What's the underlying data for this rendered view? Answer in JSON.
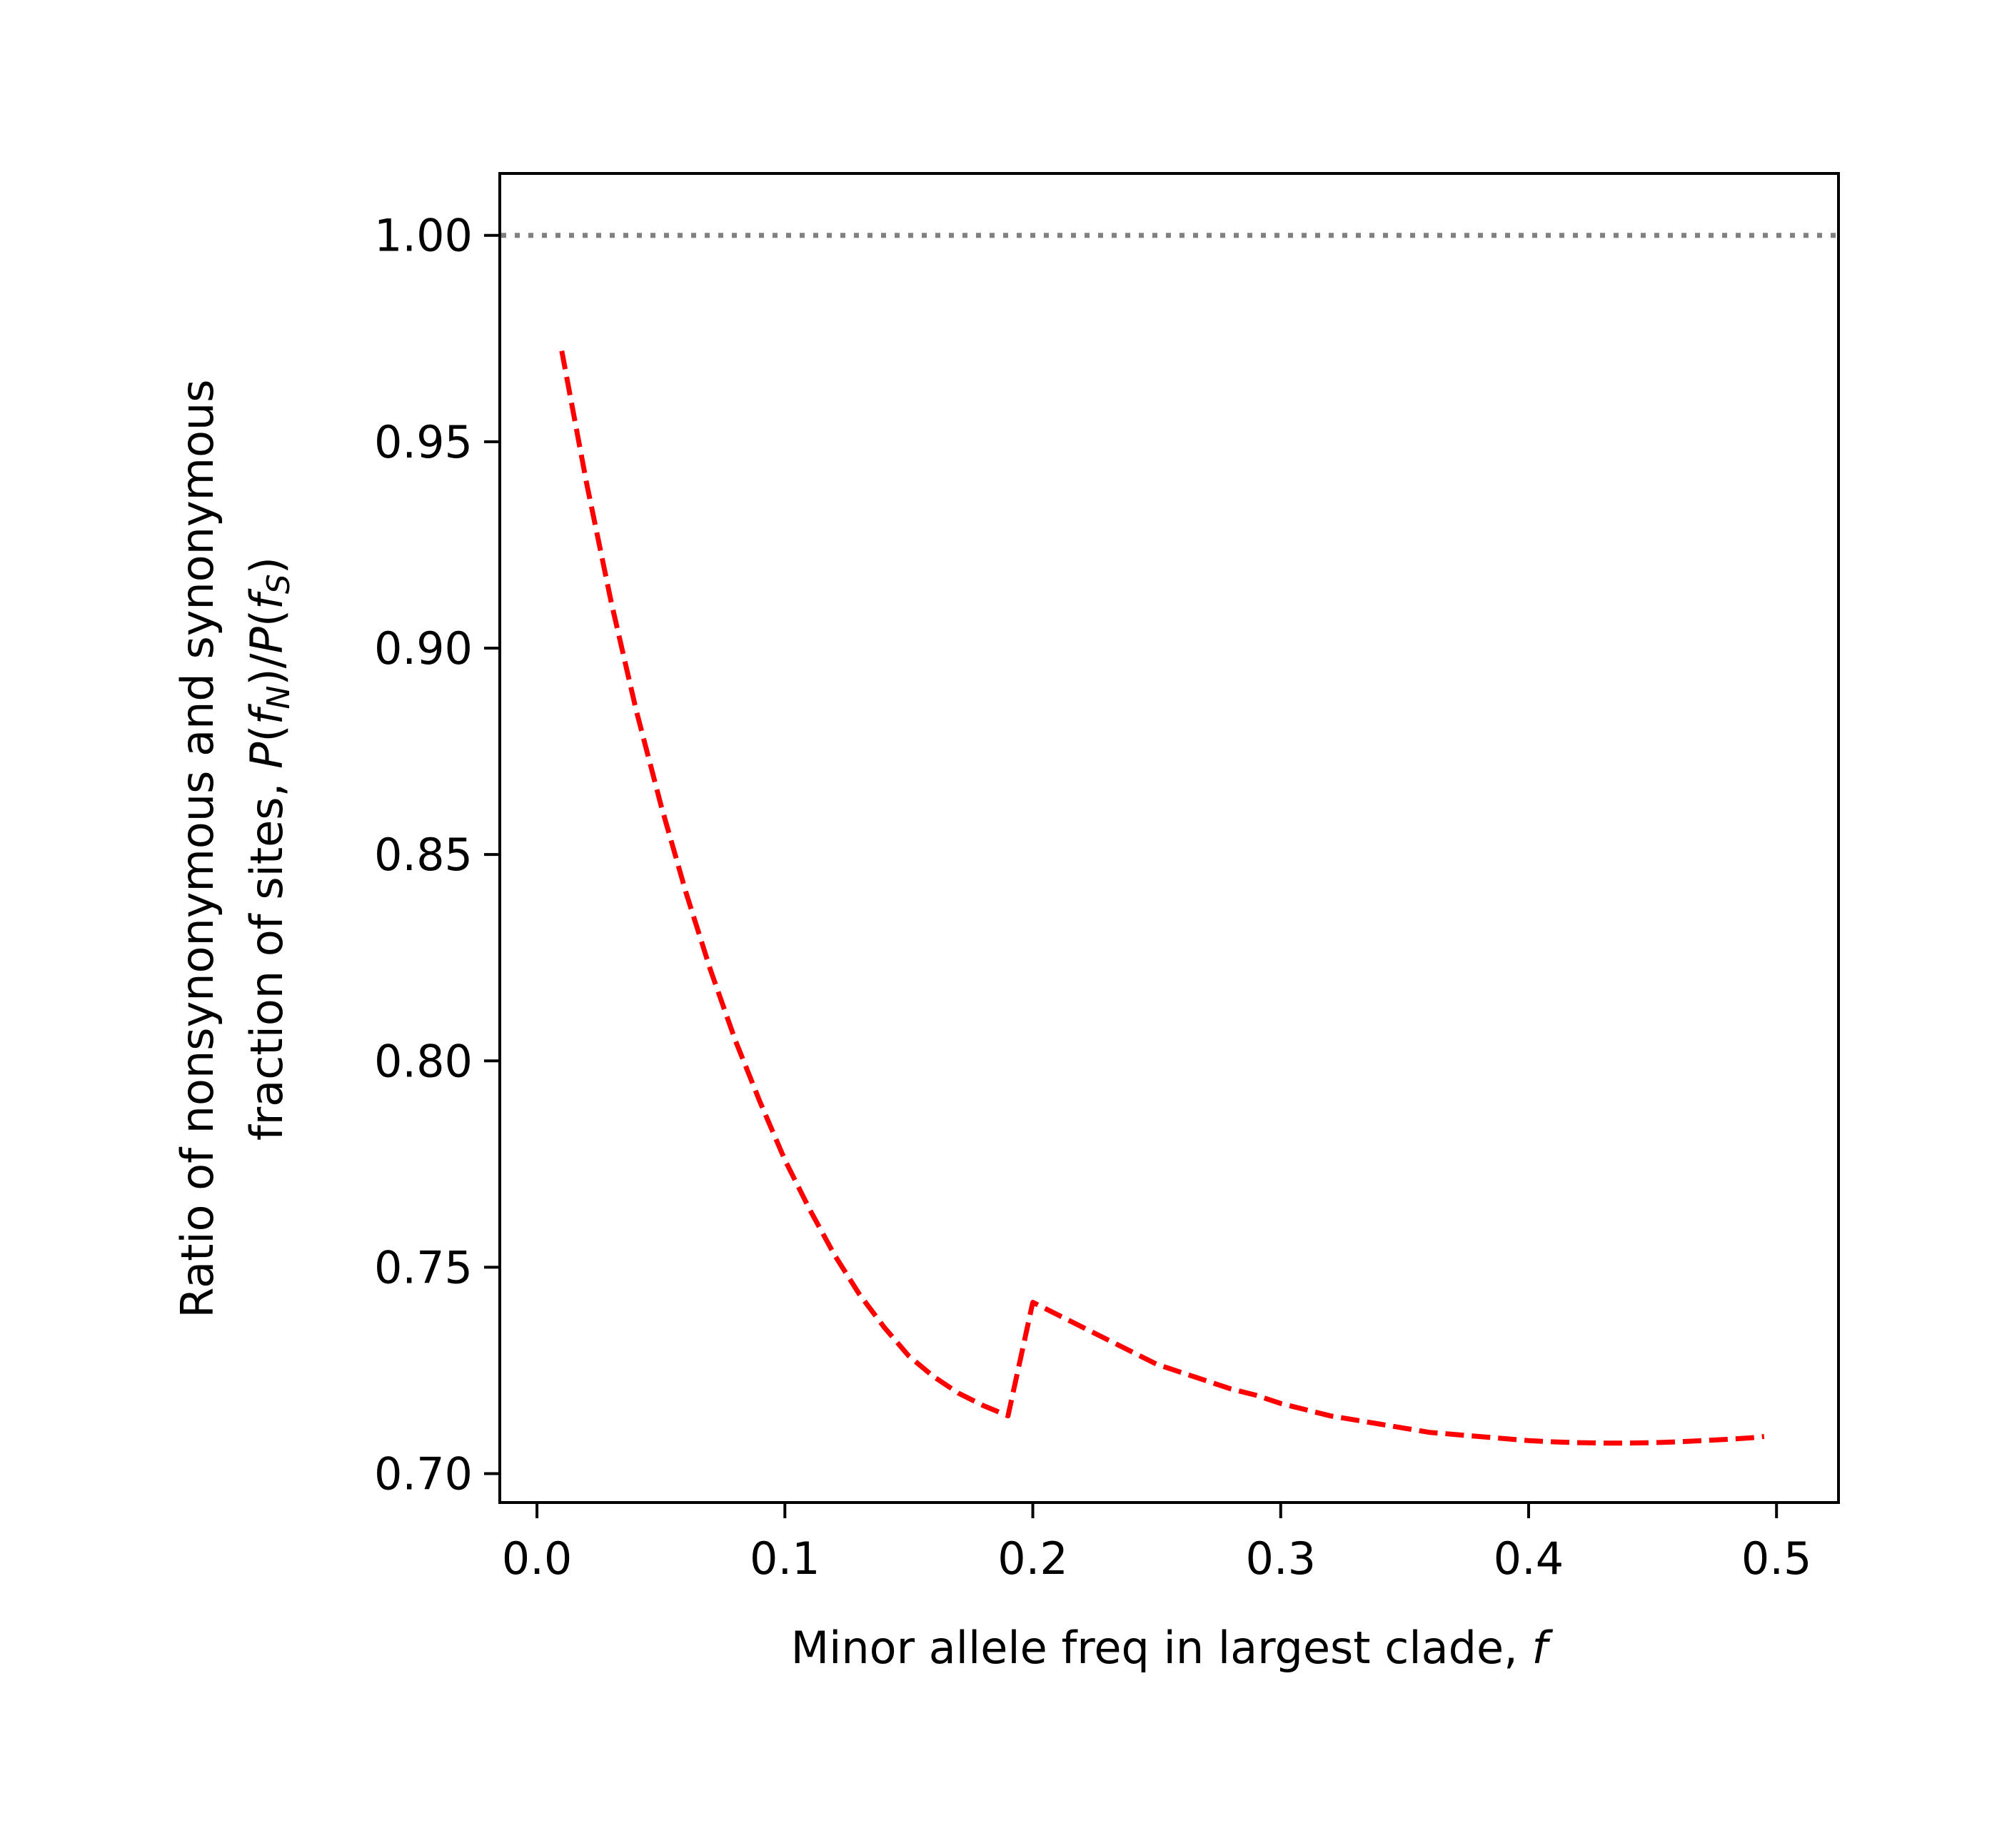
{
  "chart_data": {
    "type": "line",
    "title": "",
    "xlabel": "Minor allele freq in largest clade, ",
    "xlabel_var": "f",
    "ylabel_line1": "Ratio of nonsynonymous and synonymous",
    "ylabel_line2_prefix": "fraction of sites, ",
    "ylabel_math": {
      "P1": "P",
      "open1": "(",
      "f1": "f",
      "sub1": "N",
      "close1": ")/",
      "P2": "P",
      "open2": "(",
      "f2": "f",
      "sub2": "S",
      "close2": ")"
    },
    "xlim": [
      -0.015,
      0.525
    ],
    "ylim": [
      0.693,
      1.015
    ],
    "x_ticks": [
      0.0,
      0.1,
      0.2,
      0.3,
      0.4,
      0.5
    ],
    "x_tick_labels": [
      "0.0",
      "0.1",
      "0.2",
      "0.3",
      "0.4",
      "0.5"
    ],
    "y_ticks": [
      0.7,
      0.75,
      0.8,
      0.85,
      0.9,
      0.95,
      1.0
    ],
    "y_tick_labels": [
      "0.70",
      "0.75",
      "0.80",
      "0.85",
      "0.90",
      "0.95",
      "1.00"
    ],
    "grid": false,
    "legend": null,
    "reference_line": {
      "y": 1.0,
      "style": "dotted",
      "color": "#808080"
    },
    "series": [
      {
        "style": "dashed",
        "color": "#ff0000",
        "x": [
          0.01,
          0.02,
          0.03,
          0.04,
          0.05,
          0.06,
          0.07,
          0.08,
          0.09,
          0.1,
          0.11,
          0.12,
          0.13,
          0.14,
          0.15,
          0.16,
          0.17,
          0.18,
          0.19,
          0.2,
          0.21,
          0.22,
          0.23,
          0.24,
          0.25,
          0.26,
          0.27,
          0.28,
          0.29,
          0.3,
          0.31,
          0.32,
          0.33,
          0.34,
          0.35,
          0.36,
          0.37,
          0.38,
          0.39,
          0.4,
          0.41,
          0.42,
          0.43,
          0.44,
          0.45,
          0.46,
          0.47,
          0.48,
          0.49,
          0.495
        ],
        "y": [
          0.972,
          0.94,
          0.911,
          0.885,
          0.862,
          0.841,
          0.822,
          0.805,
          0.79,
          0.776,
          0.764,
          0.753,
          0.7435,
          0.7355,
          0.7285,
          0.7235,
          0.7195,
          0.7165,
          0.714,
          0.7415,
          0.7385,
          0.7355,
          0.7325,
          0.7295,
          0.7265,
          0.7245,
          0.7225,
          0.7205,
          0.719,
          0.717,
          0.7155,
          0.714,
          0.713,
          0.712,
          0.711,
          0.71,
          0.7095,
          0.709,
          0.7085,
          0.708,
          0.7077,
          0.7075,
          0.7074,
          0.7074,
          0.7075,
          0.7077,
          0.708,
          0.7083,
          0.7087,
          0.709
        ]
      }
    ]
  }
}
